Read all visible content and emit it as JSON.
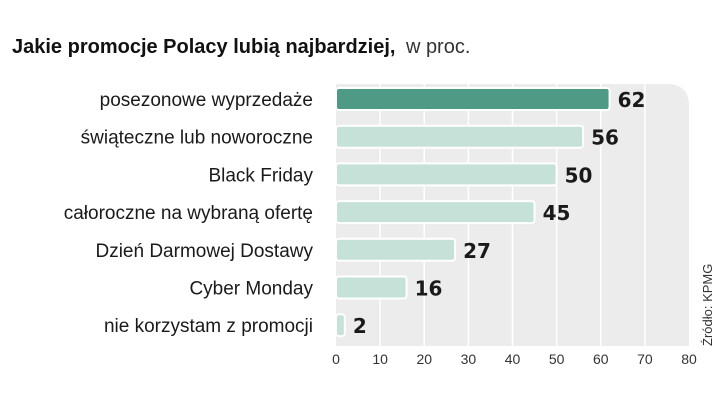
{
  "chart_data": {
    "type": "bar",
    "orientation": "horizontal",
    "title": "Jakie promocje Polacy lubią najbardziej,",
    "title_unit": "w proc.",
    "source": "Źródło: KPMG",
    "categories": [
      "posezonowe wyprzedaże",
      "świąteczne lub noworoczne",
      "Black Friday",
      "całoroczne na wybraną ofertę",
      "Dzień Darmowej Dostawy",
      "Cyber Monday",
      "nie korzystam z promocji"
    ],
    "values": [
      62,
      56,
      50,
      45,
      27,
      16,
      2
    ],
    "xlim": [
      0,
      80
    ],
    "xticks": [
      0,
      10,
      20,
      30,
      40,
      50,
      60,
      70,
      80
    ],
    "grid": true,
    "legend": "none",
    "colors": {
      "highlight_bar": "#4e9a84",
      "bar": "#c6e2d8",
      "bar_stroke": "#ffffff",
      "background_panel": "#ececec",
      "grid": "#ffffff"
    }
  }
}
